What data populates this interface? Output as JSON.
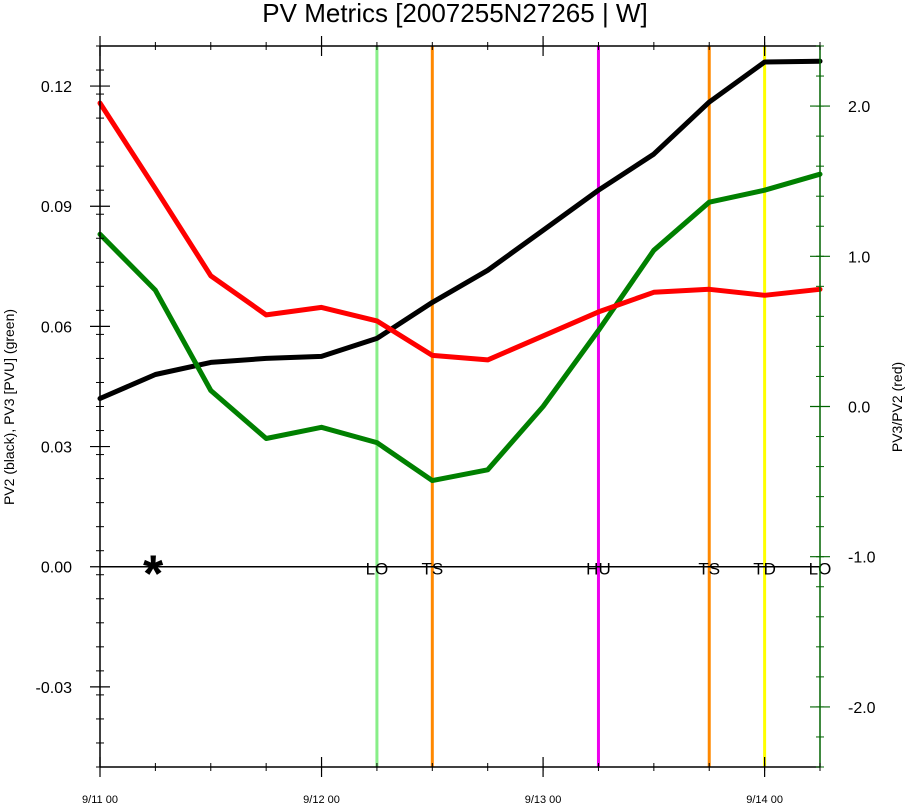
{
  "chart_data": {
    "type": "line",
    "title": "PV Metrics [2007255N27265 | W]",
    "ylabel_left": "PV2 (black), PV3 [PVU] (green)",
    "ylabel_right": "PV3/PV2 (red)",
    "x_tick_labels": [
      "9/11 00",
      "9/12 00",
      "9/13 00",
      "9/14 00"
    ],
    "x_tick_days": [
      0,
      1,
      2,
      3
    ],
    "xlim_days": [
      0,
      3.25
    ],
    "ylim_left": [
      -0.05,
      0.13
    ],
    "yticks_left": [
      "-0.03",
      "0.00",
      "0.03",
      "0.06",
      "0.09",
      "0.12"
    ],
    "yticks_left_values": [
      -0.03,
      0.0,
      0.03,
      0.06,
      0.09,
      0.12
    ],
    "ylim_right": [
      -2.4,
      2.4
    ],
    "yticks_right": [
      "-2.0",
      "-1.0",
      "0.0",
      "1.0",
      "2.0"
    ],
    "yticks_right_values": [
      -2.0,
      -1.0,
      0.0,
      1.0,
      2.0
    ],
    "x_days": [
      0,
      0.25,
      0.5,
      0.75,
      1.0,
      1.25,
      1.5,
      1.75,
      2.0,
      2.25,
      2.5,
      2.75,
      3.0,
      3.25
    ],
    "series": [
      {
        "axis": "left",
        "color": "#000000",
        "values": [
          0.042,
          0.048,
          0.051,
          0.052,
          0.0525,
          0.057,
          0.066,
          0.074,
          0.084,
          0.094,
          0.103,
          0.116,
          0.126,
          0.1262
        ]
      },
      {
        "axis": "left",
        "color": "#008000",
        "values": [
          0.083,
          0.069,
          0.044,
          0.032,
          0.0348,
          0.031,
          0.0215,
          0.0242,
          0.04,
          0.059,
          0.079,
          0.091,
          0.094,
          0.098
        ]
      },
      {
        "axis": "right",
        "color": "#ff0000",
        "values": [
          2.02,
          1.45,
          0.87,
          0.61,
          0.66,
          0.57,
          0.34,
          0.31,
          0.47,
          0.63,
          0.76,
          0.78,
          0.74,
          0.78
        ]
      }
    ],
    "zero_line_value": 0.0,
    "star_marker": {
      "symbol": "*",
      "x_day": 0.24,
      "y": 0.0
    },
    "stage_lines": [
      {
        "label": "LO",
        "x_day": 1.25,
        "color": "#88ee88"
      },
      {
        "label": "TS",
        "x_day": 1.5,
        "color": "#ff8800"
      },
      {
        "label": "HU",
        "x_day": 2.25,
        "color": "#ee00ee"
      },
      {
        "label": "TS",
        "x_day": 2.75,
        "color": "#ff8800"
      },
      {
        "label": "TD",
        "x_day": 3.0,
        "color": "#ffff00"
      },
      {
        "label": "LO",
        "x_day": 3.25,
        "color": null
      }
    ],
    "right_axis_color": "#006400",
    "grid": false
  }
}
